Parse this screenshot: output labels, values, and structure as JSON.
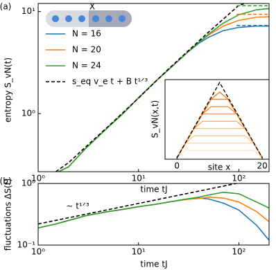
{
  "chart_data": [
    {
      "type": "line",
      "panel_label": "(a)",
      "xlabel": "time tJ",
      "ylabel": "entropy S_vN(t)",
      "xscale": "log",
      "yscale": "log",
      "xlim": [
        1,
        200
      ],
      "ylim": [
        0.27,
        12
      ],
      "xticks": [
        {
          "value": 1,
          "label": "10⁰"
        },
        {
          "value": 10,
          "label": "10¹"
        },
        {
          "value": 100,
          "label": "10²"
        }
      ],
      "yticks": [
        {
          "value": 1,
          "label": "10⁰"
        },
        {
          "value": 10,
          "label": "10¹"
        }
      ],
      "legend": "upper left",
      "schematic_label": "X",
      "x": [
        1.6,
        2,
        3,
        5,
        7,
        10,
        15,
        20,
        30,
        40,
        50,
        70,
        100,
        150,
        200
      ],
      "series": [
        {
          "name": "N = 16",
          "color": "#1f77b4",
          "values": [
            0.27,
            0.3,
            0.46,
            0.74,
            1.0,
            1.43,
            2.1,
            2.7,
            3.9,
            4.9,
            5.6,
            6.5,
            7.0,
            7.2,
            7.2
          ]
        },
        {
          "name": "N = 20",
          "color": "#ff7f0e",
          "values": [
            0.27,
            0.3,
            0.46,
            0.74,
            1.0,
            1.43,
            2.1,
            2.7,
            3.9,
            5.0,
            5.9,
            7.2,
            8.2,
            8.8,
            8.9
          ]
        },
        {
          "name": "N = 24",
          "color": "#2ca02c",
          "values": [
            0.27,
            0.3,
            0.46,
            0.74,
            1.0,
            1.43,
            2.1,
            2.7,
            3.9,
            5.0,
            6.0,
            7.7,
            9.3,
            10.4,
            10.7
          ]
        },
        {
          "name": "s_eq v_e t + B t¹ᐟ³",
          "color": "#000000",
          "dash": true,
          "x": [
            1.5,
            2,
            5,
            10,
            20,
            50,
            100,
            115
          ],
          "values": [
            0.27,
            0.33,
            0.75,
            1.42,
            2.75,
            6.3,
            11.5,
            12
          ]
        }
      ],
      "reference_x": [
        95,
        200
      ],
      "reference_levels": [
        {
          "color": "#1f77b4",
          "value": 7.3
        },
        {
          "color": "#ff7f0e",
          "value": 9.4
        },
        {
          "color": "#2ca02c",
          "value": 11.4
        }
      ]
    },
    {
      "type": "line",
      "panel_label": "(b)",
      "xlabel": "time tJ",
      "ylabel": "fluctuations ΔS(t)",
      "xscale": "log",
      "yscale": "log",
      "xlim": [
        1,
        200
      ],
      "ylim": [
        0.1,
        1
      ],
      "xticks": [
        {
          "value": 1,
          "label": "10⁰"
        },
        {
          "value": 10,
          "label": "10¹"
        },
        {
          "value": 100,
          "label": "10²"
        }
      ],
      "yticks": [
        {
          "value": 0.1,
          "label": "10⁻¹"
        },
        {
          "value": 1,
          "label": "10⁰"
        }
      ],
      "annotation": "∼ t¹ᐟ³",
      "x": [
        1,
        1.5,
        2,
        3,
        5,
        7,
        10,
        15,
        20,
        30,
        40,
        50,
        70,
        100,
        150,
        200
      ],
      "series": [
        {
          "color": "#1f77b4",
          "values": [
            0.19,
            0.22,
            0.25,
            0.3,
            0.35,
            0.38,
            0.42,
            0.46,
            0.5,
            0.55,
            0.58,
            0.56,
            0.48,
            0.37,
            0.21,
            0.12
          ]
        },
        {
          "color": "#ff7f0e",
          "values": [
            0.19,
            0.22,
            0.25,
            0.3,
            0.35,
            0.38,
            0.42,
            0.46,
            0.5,
            0.55,
            0.57,
            0.6,
            0.58,
            0.5,
            0.35,
            0.24
          ]
        },
        {
          "color": "#2ca02c",
          "values": [
            0.19,
            0.22,
            0.25,
            0.3,
            0.35,
            0.38,
            0.42,
            0.46,
            0.5,
            0.56,
            0.6,
            0.65,
            0.72,
            0.68,
            0.5,
            0.4
          ]
        },
        {
          "color": "#000000",
          "dash": true,
          "x": [
            1,
            100
          ],
          "values": [
            0.22,
            1.02
          ]
        }
      ]
    },
    {
      "type": "line",
      "xlabel": "site x",
      "ylabel": "S_vN(x,t)",
      "xlim": [
        -2.8,
        21.6
      ],
      "ylim": [
        -0.2,
        10.7
      ],
      "xticks": [
        0,
        20
      ],
      "x": [
        0,
        2,
        4,
        6,
        8,
        10,
        12,
        14,
        16,
        18,
        20
      ],
      "series": [
        {
          "color": "#fde6d0",
          "values": [
            0,
            1,
            1,
            1,
            1,
            1,
            1,
            1,
            1,
            1,
            0
          ]
        },
        {
          "color": "#fcd9b8",
          "values": [
            0,
            2,
            2,
            2,
            2,
            2,
            2,
            2,
            2,
            2,
            0
          ]
        },
        {
          "color": "#fbcb9f",
          "values": [
            0,
            2,
            3,
            3,
            3,
            3,
            3,
            3,
            3,
            2,
            0
          ]
        },
        {
          "color": "#fabd86",
          "values": [
            0,
            2,
            4,
            4,
            4,
            4,
            4,
            4,
            4,
            2,
            0
          ]
        },
        {
          "color": "#f9ae6d",
          "values": [
            0,
            2,
            4,
            5,
            5,
            5,
            5,
            5,
            4,
            2,
            0
          ]
        },
        {
          "color": "#f8a055",
          "values": [
            0,
            2,
            4,
            6,
            6,
            6,
            6,
            6,
            4,
            2,
            0
          ]
        },
        {
          "color": "#f7923d",
          "values": [
            0,
            2,
            4,
            6,
            7,
            7,
            7,
            6,
            4,
            2,
            0
          ]
        },
        {
          "color": "#f68528",
          "values": [
            0,
            2,
            4,
            6,
            8,
            8,
            8,
            6,
            4,
            2,
            0
          ]
        },
        {
          "color": "#f47f20",
          "values": [
            0,
            2,
            4,
            6,
            8,
            9,
            8,
            6,
            4,
            2,
            0
          ]
        },
        {
          "color": "#000000",
          "dash": true,
          "x": [
            0,
            10,
            20
          ],
          "values": [
            0,
            10.3,
            0
          ]
        }
      ]
    }
  ]
}
